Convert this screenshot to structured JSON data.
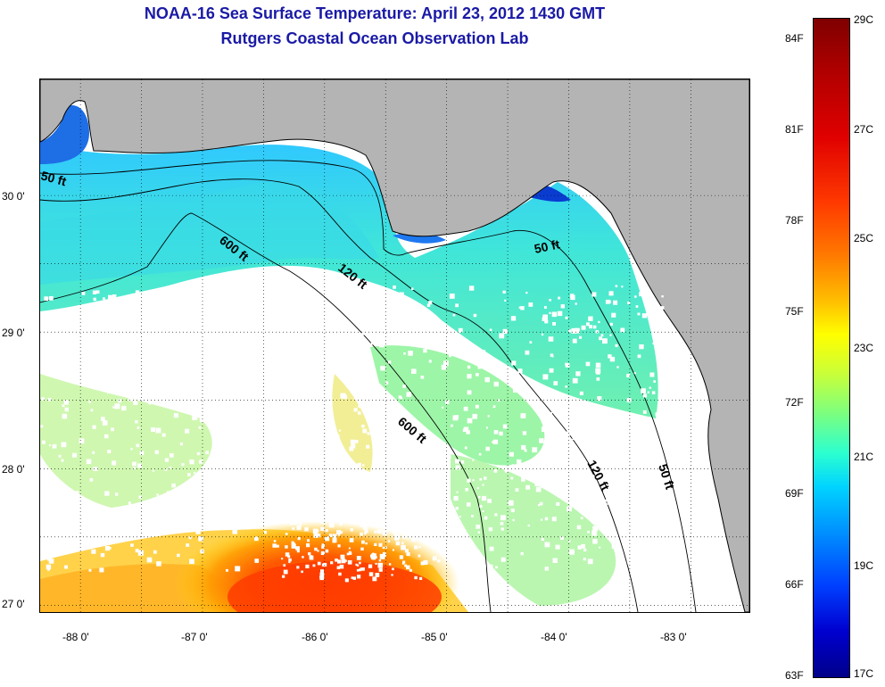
{
  "header": {
    "title": "NOAA-16 Sea Surface Temperature:  April 23, 2012 1430 GMT",
    "subtitle": "Rutgers Coastal Ocean Observation Lab"
  },
  "map": {
    "lon_range": [
      -88.33,
      -82.52
    ],
    "lat_range": [
      26.95,
      30.85
    ],
    "lon_ticks": [
      "-88 0'",
      "-87 0'",
      "-86 0'",
      "-85 0'",
      "-84 0'",
      "-83 0'"
    ],
    "lat_ticks": [
      "30 0'",
      "29 0'",
      "28 0'",
      "27 0'"
    ],
    "contour_labels": [
      "50 ft",
      "600 ft",
      "120 ft",
      "50 ft",
      "600 ft",
      "120 ft",
      "50 ft"
    ],
    "colors": {
      "land": "#b4b4b4",
      "no_data": "#ffffff",
      "coast": "#000000"
    }
  },
  "colorbar": {
    "f_labels": [
      "84F",
      "81F",
      "78F",
      "75F",
      "72F",
      "69F",
      "66F",
      "63F"
    ],
    "c_labels": [
      "29C",
      "27C",
      "25C",
      "23C",
      "21C",
      "19C",
      "17C"
    ],
    "temp_range_c": [
      17,
      29
    ]
  }
}
